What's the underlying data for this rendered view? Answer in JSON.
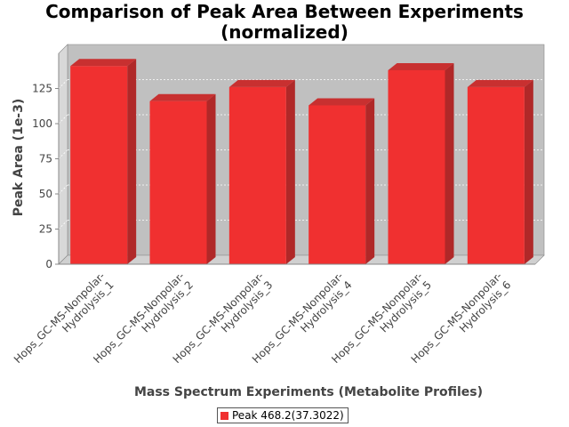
{
  "chart_data": {
    "type": "bar",
    "title_lines": [
      "Comparison of Peak Area Between Experiments",
      "(normalized)"
    ],
    "xlabel": "Mass Spectrum Experiments (Metabolite Profiles)",
    "ylabel": "Peak Area (1e-3)",
    "ylim": [
      0,
      150
    ],
    "yticks": [
      0,
      25,
      50,
      75,
      100,
      125
    ],
    "grid": true,
    "legend_position": "bottom",
    "categories": [
      [
        "Hops_GC-MS-Nonpolar-",
        "Hydrolysis_1"
      ],
      [
        "Hops_GC-MS-Nonpolar-",
        "Hydrolysis_2"
      ],
      [
        "Hops_GC-MS-Nonpolar-",
        "Hydrolysis_3"
      ],
      [
        "Hops_GC-MS-Nonpolar-",
        "Hydrolysis_4"
      ],
      [
        "Hops_GC-MS-Nonpolar-",
        "Hydrolysis_5"
      ],
      [
        "Hops_GC-MS-Nonpolar-",
        "Hydrolysis_6"
      ]
    ],
    "series": [
      {
        "name": "Peak 468.2(37.3022)",
        "color": "#f03030",
        "values": [
          141,
          116,
          126,
          113,
          138,
          126
        ]
      }
    ]
  }
}
